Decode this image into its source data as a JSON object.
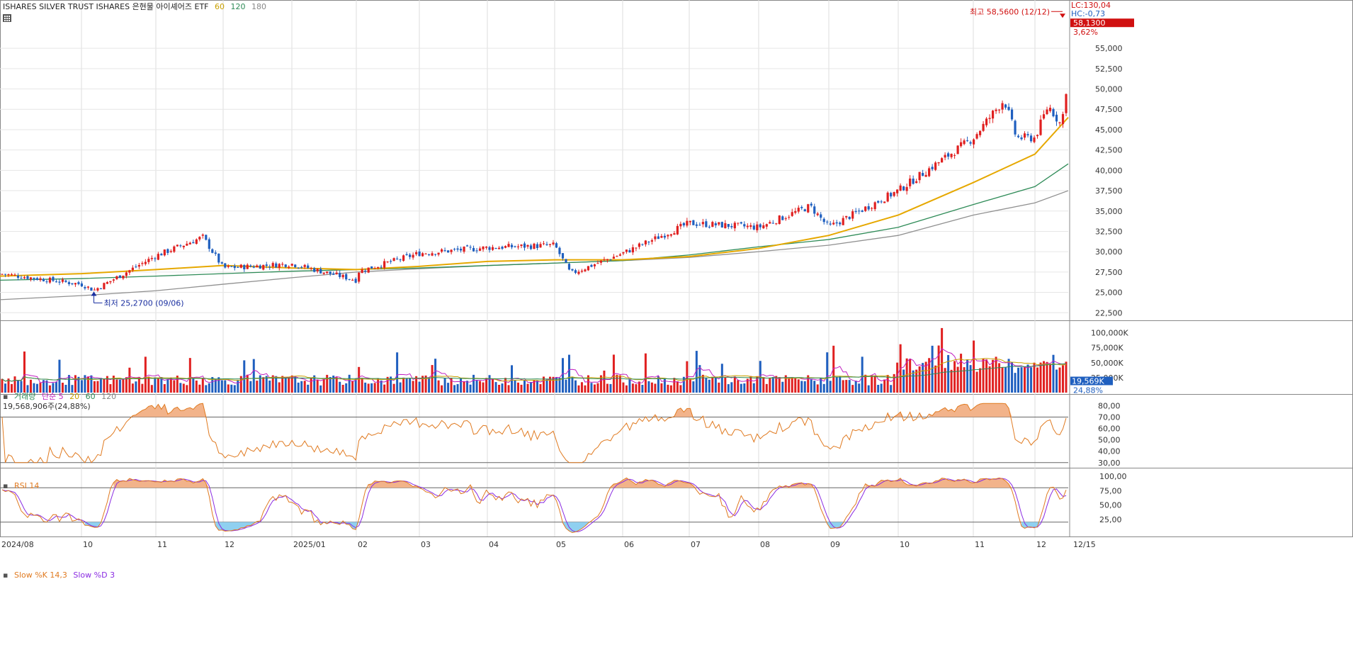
{
  "header": {
    "title": "ISHARES SILVER TRUST ISHARES  은현물 아이셰어즈 ETF",
    "ma_60": "60",
    "ma_120": "120",
    "ma_180": "180"
  },
  "price_panel": {
    "lc_label": "LC:130,04",
    "hc_label": "HC:-0,73",
    "high_annotation": "최고 58,5600 (12/12)",
    "low_annotation": "최저 25,2700 (09/06)",
    "last_price_tag": "58,1300",
    "change_pct_tag": "3,62%",
    "ticks": [
      "22,500",
      "25,000",
      "27,500",
      "30,000",
      "32,500",
      "35,000",
      "37,500",
      "40,000",
      "42,500",
      "45,000",
      "47,500",
      "50,000",
      "52,500",
      "55,000"
    ]
  },
  "volume_panel": {
    "label_volume": "거래량",
    "label_ma": "단순 5",
    "label_20": "20",
    "label_60": "60",
    "label_120": "120",
    "last_volume_text": "19,568,906주(24,88%)",
    "last_volume_tag": "19,569K",
    "pct_tag": "24,88%",
    "ticks": [
      "25,000K",
      "50,000K",
      "75,000K",
      "100,000K"
    ]
  },
  "rsi_panel": {
    "label": "RSI 14",
    "ticks": [
      "30,00",
      "40,00",
      "50,00",
      "60,00",
      "70,00",
      "80,00"
    ]
  },
  "stoch_panel": {
    "label_k": "Slow %K 14,3",
    "label_d": "Slow %D 3",
    "ticks": [
      "25,00",
      "50,00",
      "75,00",
      "100,00"
    ]
  },
  "x_axis": {
    "labels": [
      "2024/08",
      "10",
      "11",
      "12",
      "2025/01",
      "02",
      "03",
      "04",
      "05",
      "06",
      "07",
      "08",
      "09",
      "10",
      "11",
      "12",
      "12/15"
    ]
  },
  "colors": {
    "up": "#e02020",
    "down": "#1f5fbf",
    "ma60": "#e6a800",
    "ma120": "#2e8b57",
    "ma180": "#909090",
    "rsi": "#e07a20",
    "rsi_fill": "#f2b38a",
    "stoch_k": "#e07a20",
    "stoch_d": "#8a2be2"
  },
  "chart_data": {
    "type": "candlestick",
    "title": "ISHARES SILVER TRUST ISHARES 은현물 아이셰어즈 ETF",
    "x_range": [
      "2024/08",
      "2025/12/15"
    ],
    "ylim": [
      22500,
      58560
    ],
    "high": {
      "value": 58.56,
      "date": "12/12"
    },
    "low": {
      "value": 25.27,
      "date": "09/06"
    },
    "last_close": 58.13,
    "change_pct": 3.62,
    "price_anchors": [
      {
        "date": "2024/08",
        "close": 27.3
      },
      {
        "date": "2024/09",
        "close": 26.0
      },
      {
        "date": "2024/09/06",
        "close": 25.27
      },
      {
        "date": "2024/10",
        "close": 29.5
      },
      {
        "date": "2024/10/22",
        "close": 31.8
      },
      {
        "date": "2024/11",
        "close": 28.0
      },
      {
        "date": "2024/12",
        "close": 28.5
      },
      {
        "date": "2024/12/31",
        "close": 26.5
      },
      {
        "date": "2025/01",
        "close": 27.5
      },
      {
        "date": "2025/02",
        "close": 29.8
      },
      {
        "date": "2025/03",
        "close": 30.5
      },
      {
        "date": "2025/04",
        "close": 30.8
      },
      {
        "date": "2025/04/08",
        "close": 27.3
      },
      {
        "date": "2025/05",
        "close": 29.8
      },
      {
        "date": "2025/06",
        "close": 33.5
      },
      {
        "date": "2025/07",
        "close": 33.0
      },
      {
        "date": "2025/07/23",
        "close": 35.6
      },
      {
        "date": "2025/08",
        "close": 33.0
      },
      {
        "date": "2025/09",
        "close": 37.5
      },
      {
        "date": "2025/10",
        "close": 44.0
      },
      {
        "date": "2025/10/16",
        "close": 48.7
      },
      {
        "date": "2025/10/22",
        "close": 44.0
      },
      {
        "date": "2025/11",
        "close": 44.0
      },
      {
        "date": "2025/11/13",
        "close": 48.0
      },
      {
        "date": "2025/11/25",
        "close": 45.5
      },
      {
        "date": "2025/12",
        "close": 52.0
      },
      {
        "date": "2025/12/12",
        "close": 58.56
      },
      {
        "date": "2025/12/15",
        "close": 58.13
      }
    ],
    "ma60_anchors": [
      27.0,
      27.3,
      27.8,
      28.3,
      28.0,
      27.8,
      28.2,
      28.8,
      29.0,
      29.0,
      29.4,
      30.4,
      32.0,
      34.5,
      38.5,
      42.0,
      46.5
    ],
    "ma120_anchors": [
      26.5,
      26.7,
      27.0,
      27.3,
      27.6,
      27.8,
      28.0,
      28.3,
      28.6,
      28.9,
      29.6,
      30.6,
      31.5,
      33.0,
      35.8,
      38.0,
      40.8
    ],
    "ma180_anchors": [
      24.1,
      24.6,
      25.2,
      26.0,
      26.8,
      27.5,
      27.9,
      28.3,
      28.6,
      28.9,
      29.3,
      30.0,
      30.8,
      32.0,
      34.5,
      36.0,
      37.5
    ],
    "volume_ma_note": "volume bars in thousands of shares",
    "last_volume": 19568906
  }
}
